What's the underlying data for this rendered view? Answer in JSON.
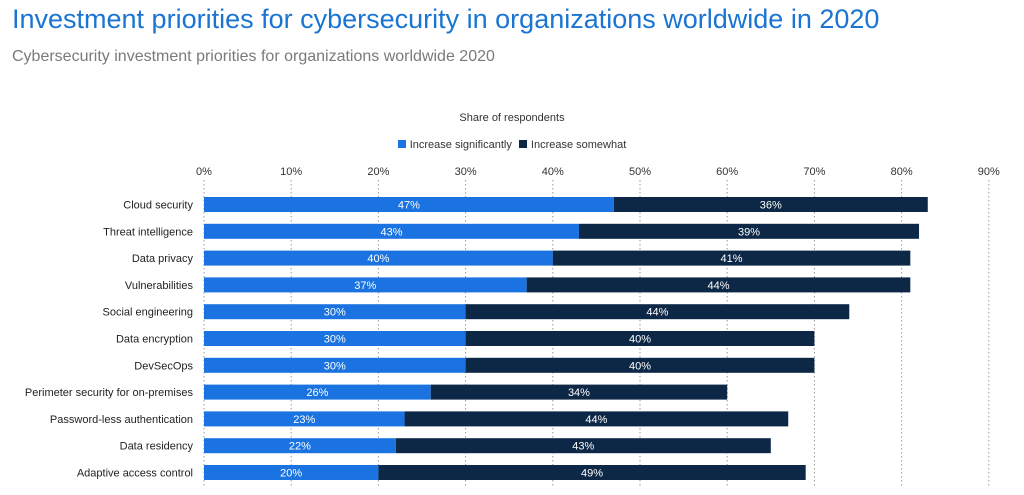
{
  "title": "Investment priorities for cybersecurity in organizations worldwide in 2020",
  "subtitle": "Cybersecurity investment priorities for organizations worldwide 2020",
  "colors": {
    "increase_significantly": "#1a73e0",
    "increase_somewhat": "#0d2846",
    "title": "#1a75d2"
  },
  "chart_data": {
    "type": "bar",
    "orientation": "horizontal",
    "stacked": true,
    "axis_title": "Share of respondents",
    "legend_position": "top-center",
    "grid": true,
    "xlim": [
      0,
      90
    ],
    "ticks": [
      "0%",
      "10%",
      "20%",
      "30%",
      "40%",
      "50%",
      "60%",
      "70%",
      "80%",
      "90%"
    ],
    "categories": [
      "Cloud security",
      "Threat intelligence",
      "Data privacy",
      "Vulnerabilities",
      "Social engineering",
      "Data encryption",
      "DevSecOps",
      "Perimeter security for on-premises",
      "Password-less authentication",
      "Data residency",
      "Adaptive access control"
    ],
    "series": [
      {
        "name": "Increase significantly",
        "values": [
          47,
          43,
          40,
          37,
          30,
          30,
          30,
          26,
          23,
          22,
          20
        ]
      },
      {
        "name": "Increase somewhat",
        "values": [
          36,
          39,
          41,
          44,
          44,
          40,
          40,
          34,
          44,
          43,
          49
        ]
      }
    ]
  }
}
